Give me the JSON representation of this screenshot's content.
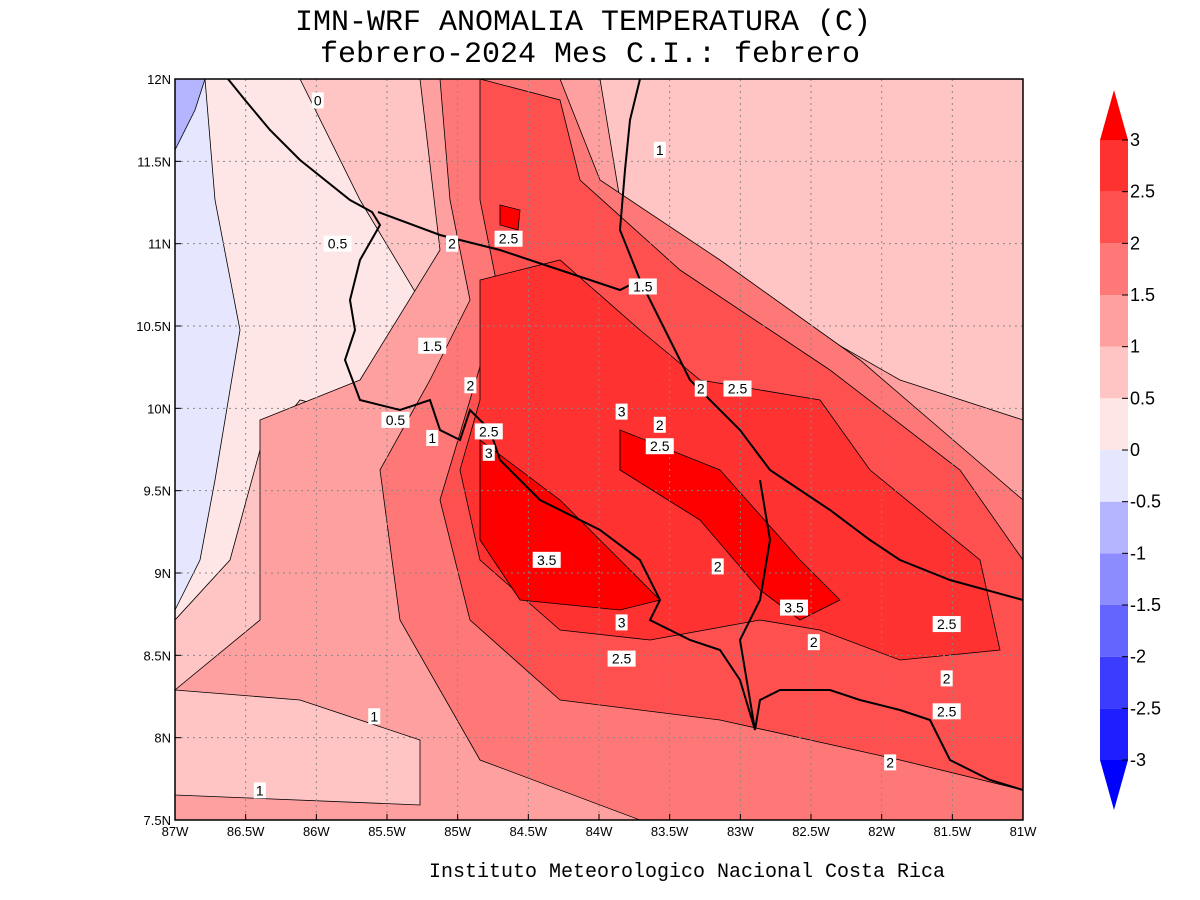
{
  "title": "IMN-WRF  ANOMALIA TEMPERATURA (C)",
  "subtitle": "febrero-2024 Mes C.I.: febrero",
  "footer": "Instituto Meteorologico Nacional Costa Rica",
  "map": {
    "lon_range": [
      -87,
      -81
    ],
    "lat_range": [
      7.5,
      12
    ],
    "grid": true,
    "x_ticks": [
      {
        "value": -87,
        "label": "87W"
      },
      {
        "value": -86.5,
        "label": "86.5W"
      },
      {
        "value": -86,
        "label": "86W"
      },
      {
        "value": -85.5,
        "label": "85.5W"
      },
      {
        "value": -85,
        "label": "85W"
      },
      {
        "value": -84.5,
        "label": "84.5W"
      },
      {
        "value": -84,
        "label": "84W"
      },
      {
        "value": -83.5,
        "label": "83.5W"
      },
      {
        "value": -83,
        "label": "83W"
      },
      {
        "value": -82.5,
        "label": "82.5W"
      },
      {
        "value": -82,
        "label": "82W"
      },
      {
        "value": -81.5,
        "label": "81.5W"
      },
      {
        "value": -81,
        "label": "81W"
      }
    ],
    "y_ticks": [
      {
        "value": 7.5,
        "label": "7.5N"
      },
      {
        "value": 8,
        "label": "8N"
      },
      {
        "value": 8.5,
        "label": "8.5N"
      },
      {
        "value": 9,
        "label": "9N"
      },
      {
        "value": 9.5,
        "label": "9.5N"
      },
      {
        "value": 10,
        "label": "10N"
      },
      {
        "value": 10.5,
        "label": "10.5N"
      },
      {
        "value": 11,
        "label": "11N"
      },
      {
        "value": 11.5,
        "label": "11.5N"
      },
      {
        "value": 12,
        "label": "12N"
      }
    ],
    "contour_labels": [
      {
        "text": "0",
        "lon": -85.99,
        "lat": 11.87
      },
      {
        "text": "1",
        "lon": -83.57,
        "lat": 11.57
      },
      {
        "text": "0.5",
        "lon": -85.85,
        "lat": 11.0
      },
      {
        "text": "2",
        "lon": -85.04,
        "lat": 11.0
      },
      {
        "text": "2.5",
        "lon": -84.64,
        "lat": 11.03
      },
      {
        "text": "1.5",
        "lon": -83.69,
        "lat": 10.74
      },
      {
        "text": "1.5",
        "lon": -85.18,
        "lat": 10.38
      },
      {
        "text": "2",
        "lon": -84.91,
        "lat": 10.14
      },
      {
        "text": "2",
        "lon": -83.28,
        "lat": 10.12
      },
      {
        "text": "2.5",
        "lon": -83.02,
        "lat": 10.12
      },
      {
        "text": "3",
        "lon": -83.84,
        "lat": 9.98
      },
      {
        "text": "2",
        "lon": -83.57,
        "lat": 9.9
      },
      {
        "text": "0.5",
        "lon": -85.44,
        "lat": 9.93
      },
      {
        "text": "1",
        "lon": -85.18,
        "lat": 9.82
      },
      {
        "text": "2.5",
        "lon": -84.78,
        "lat": 9.86
      },
      {
        "text": "2.5",
        "lon": -83.57,
        "lat": 9.77
      },
      {
        "text": "3",
        "lon": -84.78,
        "lat": 9.73
      },
      {
        "text": "3.5",
        "lon": -84.37,
        "lat": 9.08
      },
      {
        "text": "2",
        "lon": -83.16,
        "lat": 9.04
      },
      {
        "text": "3.5",
        "lon": -82.62,
        "lat": 8.79
      },
      {
        "text": "3",
        "lon": -83.84,
        "lat": 8.7
      },
      {
        "text": "2",
        "lon": -82.48,
        "lat": 8.58
      },
      {
        "text": "2.5",
        "lon": -81.54,
        "lat": 8.69
      },
      {
        "text": "2.5",
        "lon": -83.84,
        "lat": 8.48
      },
      {
        "text": "2",
        "lon": -81.54,
        "lat": 8.36
      },
      {
        "text": "1",
        "lon": -85.59,
        "lat": 8.13
      },
      {
        "text": "2.5",
        "lon": -81.54,
        "lat": 8.16
      },
      {
        "text": "2",
        "lon": -81.94,
        "lat": 7.85
      },
      {
        "text": "1",
        "lon": -86.4,
        "lat": 7.68
      }
    ]
  },
  "colorbar": {
    "levels": [
      -3,
      -2.5,
      -2,
      -1.5,
      -1,
      -0.5,
      0,
      0.5,
      1,
      1.5,
      2,
      2.5,
      3
    ],
    "colors": [
      "#0000ff",
      "#1e1eff",
      "#3c3cff",
      "#6464ff",
      "#8c8cff",
      "#b4b4ff",
      "#e6e6ff",
      "#ffe6e6",
      "#ffc4c4",
      "#ffa0a0",
      "#ff7878",
      "#ff5050",
      "#ff3232",
      "#ff0000"
    ]
  }
}
